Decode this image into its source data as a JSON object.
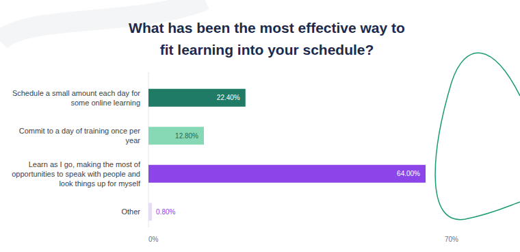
{
  "chart_data": {
    "type": "bar",
    "orientation": "horizontal",
    "title": "What has been the most effective way to fit learning into your schedule?",
    "categories": [
      "Schedule a small amount each day for some online learning",
      "Commit to a day of training once per year",
      "Learn as I go, making the most of opportunities to speak with people and look things up for myself",
      "Other"
    ],
    "values": [
      22.4,
      12.8,
      64.0,
      0.8
    ],
    "value_labels": [
      "22.40%",
      "12.80%",
      "64.00%",
      "0.80%"
    ],
    "colors": [
      "#1f7a66",
      "#86d9b4",
      "#8b45e8",
      "#e6dcf8"
    ],
    "xlim": [
      0,
      70
    ],
    "xticks": [
      {
        "value": 0,
        "label": "0%"
      },
      {
        "value": 70,
        "label": "70%"
      }
    ],
    "data_labels": true,
    "grid": false
  }
}
